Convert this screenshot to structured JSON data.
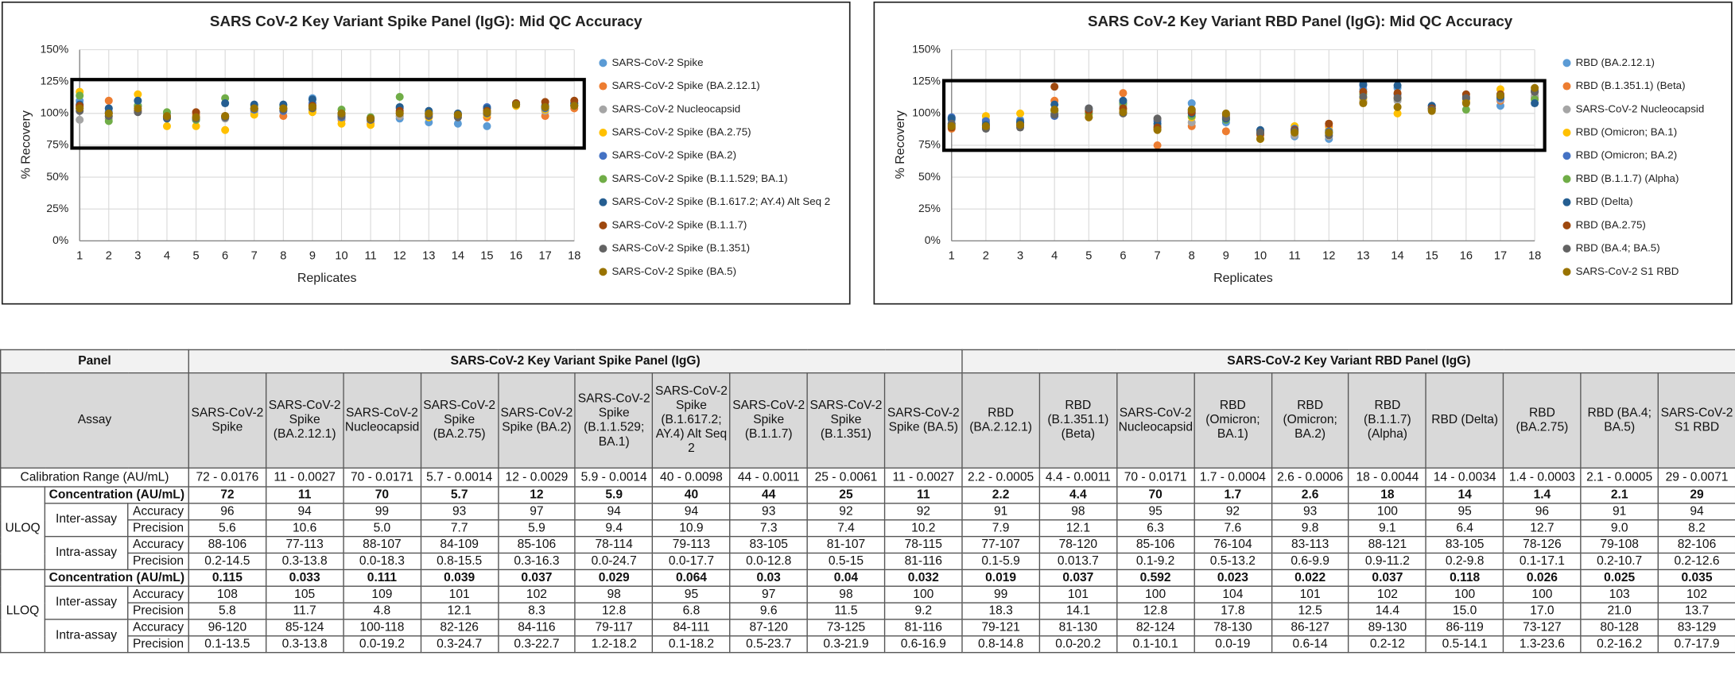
{
  "chart_data": [
    {
      "type": "scatter",
      "title": "SARS CoV-2 Key Variant Spike Panel (IgG): Mid QC Accuracy",
      "x_label": "Replicates",
      "y_label": "% Recovery",
      "x": [
        1,
        2,
        3,
        4,
        5,
        6,
        7,
        8,
        9,
        10,
        11,
        12,
        13,
        14,
        15,
        16,
        17,
        18
      ],
      "xlim": [
        1,
        18
      ],
      "xticks": [
        1,
        2,
        3,
        4,
        5,
        6,
        7,
        8,
        9,
        10,
        11,
        12,
        13,
        14,
        15,
        16,
        17,
        18
      ],
      "ylim": [
        0,
        150
      ],
      "yticks": [
        {
          "value": 0,
          "label": "0%"
        },
        {
          "value": 25,
          "label": "25%"
        },
        {
          "value": 50,
          "label": "50%"
        },
        {
          "value": 75,
          "label": "75%"
        },
        {
          "value": 100,
          "label": "100%"
        },
        {
          "value": 125,
          "label": "125%"
        },
        {
          "value": 150,
          "label": "150%"
        }
      ],
      "grid": true,
      "legend": "right",
      "series": [
        {
          "name": "SARS-CoV-2 Spike",
          "color": "#5b9bd5",
          "values": [
            110,
            104,
            106,
            100,
            96,
            98,
            103,
            104,
            112,
            100,
            96,
            96,
            93,
            92,
            90,
            107,
            104,
            106
          ]
        },
        {
          "name": "SARS-CoV-2 Spike (BA.2.12.1)",
          "color": "#ed7d31",
          "values": [
            105,
            110,
            106,
            97,
            99,
            98,
            102,
            98,
            104,
            95,
            92,
            98,
            97,
            97,
            97,
            106,
            98,
            104
          ]
        },
        {
          "name": "SARS-CoV-2 Nucleocapsid",
          "color": "#a5a5a5",
          "values": [
            95,
            96,
            103,
            97,
            95,
            96,
            101,
            102,
            103,
            96,
            94,
            98,
            99,
            98,
            100,
            106,
            102,
            106
          ]
        },
        {
          "name": "SARS-CoV-2 Spike (BA.2.75)",
          "color": "#ffc000",
          "values": [
            117,
            98,
            115,
            90,
            90,
            87,
            99,
            104,
            101,
            92,
            91,
            101,
            97,
            98,
            99,
            106,
            103,
            106
          ]
        },
        {
          "name": "SARS-CoV-2 Spike (BA.2)",
          "color": "#4472c4",
          "values": [
            104,
            101,
            106,
            98,
            95,
            97,
            103,
            102,
            108,
            97,
            95,
            104,
            101,
            99,
            105,
            107,
            104,
            107
          ]
        },
        {
          "name": "SARS-CoV-2 Spike (B.1.1.529; BA.1)",
          "color": "#70ad47",
          "values": [
            114,
            94,
            106,
            101,
            95,
            112,
            106,
            106,
            106,
            103,
            97,
            113,
            100,
            99,
            102,
            107,
            105,
            108
          ]
        },
        {
          "name": "SARS-CoV-2 Spike (B.1.617.2; AY.4) Alt Seq 2",
          "color": "#255e91",
          "values": [
            107,
            104,
            110,
            96,
            97,
            108,
            107,
            107,
            111,
            99,
            96,
            105,
            102,
            100,
            104,
            108,
            106,
            108
          ]
        },
        {
          "name": "SARS-CoV-2 Spike (B.1.1.7)",
          "color": "#9e480e",
          "values": [
            106,
            100,
            102,
            97,
            101,
            98,
            104,
            104,
            106,
            100,
            96,
            102,
            99,
            99,
            102,
            108,
            109,
            110
          ]
        },
        {
          "name": "SARS-CoV-2 Spike (B.1.351)",
          "color": "#636363",
          "values": [
            102,
            98,
            101,
            97,
            96,
            97,
            104,
            103,
            104,
            98,
            95,
            100,
            98,
            97,
            100,
            107,
            105,
            106
          ]
        },
        {
          "name": "SARS-CoV-2 Spike (BA.5)",
          "color": "#997300",
          "values": [
            104,
            100,
            104,
            98,
            97,
            98,
            104,
            104,
            105,
            100,
            96,
            100,
            100,
            99,
            101,
            107,
            105,
            106
          ]
        }
      ]
    },
    {
      "type": "scatter",
      "title": "SARS CoV-2 Key Variant RBD Panel (IgG): Mid QC Accuracy",
      "x_label": "Replicates",
      "y_label": "% Recovery",
      "x": [
        1,
        2,
        3,
        4,
        5,
        6,
        7,
        8,
        9,
        10,
        11,
        12,
        13,
        14,
        15,
        16,
        17,
        18
      ],
      "xlim": [
        1,
        18
      ],
      "xticks": [
        1,
        2,
        3,
        4,
        5,
        6,
        7,
        8,
        9,
        10,
        11,
        12,
        13,
        14,
        15,
        16,
        17,
        18
      ],
      "ylim": [
        0,
        150
      ],
      "yticks": [
        {
          "value": 0,
          "label": "0%"
        },
        {
          "value": 25,
          "label": "25%"
        },
        {
          "value": 50,
          "label": "50%"
        },
        {
          "value": 75,
          "label": "75%"
        },
        {
          "value": 100,
          "label": "100%"
        },
        {
          "value": 125,
          "label": "125%"
        },
        {
          "value": 150,
          "label": "150%"
        }
      ],
      "grid": true,
      "legend": "right",
      "series": [
        {
          "name": "RBD (BA.2.12.1)",
          "color": "#5b9bd5",
          "values": [
            95,
            92,
            95,
            103,
            100,
            103,
            88,
            108,
            93,
            86,
            82,
            80,
            119,
            120,
            103,
            108,
            106,
            113
          ]
        },
        {
          "name": "RBD (B.1.351.1) (Beta)",
          "color": "#ed7d31",
          "values": [
            88,
            93,
            93,
            110,
            97,
            116,
            75,
            90,
            86,
            83,
            85,
            90,
            109,
            113,
            104,
            109,
            110,
            112
          ]
        },
        {
          "name": "SARS-CoV-2 Nucleocapsid",
          "color": "#a5a5a5",
          "values": [
            92,
            95,
            90,
            100,
            101,
            106,
            95,
            93,
            96,
            85,
            83,
            82,
            110,
            110,
            104,
            111,
            111,
            114
          ]
        },
        {
          "name": "RBD (Omicron; BA.1)",
          "color": "#ffc000",
          "values": [
            90,
            98,
            100,
            102,
            99,
            103,
            88,
            97,
            98,
            80,
            90,
            87,
            112,
            100,
            105,
            110,
            119,
            118
          ]
        },
        {
          "name": "RBD (Omicron; BA.2)",
          "color": "#4472c4",
          "values": [
            97,
            94,
            94,
            98,
            104,
            108,
            94,
            102,
            95,
            86,
            88,
            86,
            122,
            115,
            106,
            112,
            112,
            118
          ]
        },
        {
          "name": "RBD (B.1.1.7) (Alpha)",
          "color": "#70ad47",
          "values": [
            91,
            91,
            93,
            102,
            100,
            108,
            90,
            98,
            95,
            85,
            86,
            84,
            115,
            112,
            104,
            103,
            113,
            111
          ]
        },
        {
          "name": "RBD (Delta)",
          "color": "#255e91",
          "values": [
            96,
            91,
            93,
            107,
            103,
            110,
            92,
            100,
            96,
            87,
            87,
            85,
            123,
            122,
            106,
            113,
            113,
            108
          ]
        },
        {
          "name": "RBD (BA.2.75)",
          "color": "#9e480e",
          "values": [
            89,
            89,
            91,
            121,
            102,
            104,
            89,
            101,
            99,
            84,
            87,
            92,
            117,
            116,
            104,
            115,
            115,
            117
          ]
        },
        {
          "name": "RBD (BA.4; BA.5)",
          "color": "#636363",
          "values": [
            92,
            88,
            89,
            99,
            104,
            100,
            96,
            103,
            97,
            85,
            86,
            83,
            113,
            112,
            103,
            112,
            114,
            117
          ]
        },
        {
          "name": "SARS-CoV-2 S1 RBD",
          "color": "#997300",
          "values": [
            90,
            90,
            91,
            103,
            97,
            101,
            87,
            103,
            100,
            80,
            85,
            85,
            108,
            105,
            102,
            108,
            114,
            120
          ]
        }
      ]
    }
  ],
  "table": {
    "panel_label": "Panel",
    "panels": [
      "SARS-CoV-2 Key Variant Spike Panel (IgG)",
      "SARS-CoV-2 Key Variant RBD Panel (IgG)"
    ],
    "assay_label": "Assay",
    "assays": [
      "SARS-CoV-2 Spike",
      "SARS-CoV-2 Spike (BA.2.12.1)",
      "SARS-CoV-2 Nucleocapsid",
      "SARS-CoV-2 Spike (BA.2.75)",
      "SARS-CoV-2 Spike (BA.2)",
      "SARS-CoV-2 Spike (B.1.1.529; BA.1)",
      "SARS-CoV-2 Spike (B.1.617.2; AY.4) Alt Seq 2",
      "SARS-CoV-2 Spike (B.1.1.7)",
      "SARS-CoV-2 Spike (B.1.351)",
      "SARS-CoV-2 Spike (BA.5)",
      "RBD (BA.2.12.1)",
      "RBD (B.1.351.1) (Beta)",
      "SARS-CoV-2 Nucleocapsid",
      "RBD (Omicron; BA.1)",
      "RBD (Omicron; BA.2)",
      "RBD (B.1.1.7) (Alpha)",
      "RBD (Delta)",
      "RBD (BA.2.75)",
      "RBD (BA.4; BA.5)",
      "SARS-CoV-2 S1 RBD"
    ],
    "calibration_label": "Calibration Range (AU/mL)",
    "calibration": [
      "72 - 0.0176",
      "11 - 0.0027",
      "70 - 0.0171",
      "5.7 - 0.0014",
      "12 - 0.0029",
      "5.9 - 0.0014",
      "40 - 0.0098",
      "44 - 0.0011",
      "25 - 0.0061",
      "11 - 0.0027",
      "2.2 - 0.0005",
      "4.4 - 0.0011",
      "70 - 0.0171",
      "1.7 - 0.0004",
      "2.6 - 0.0006",
      "18 - 0.0044",
      "14 - 0.0034",
      "1.4 - 0.0003",
      "2.1 - 0.0005",
      "29 - 0.0071"
    ],
    "sections": [
      {
        "label": "ULOQ",
        "rows": [
          {
            "label": "Concentration (AU/mL)",
            "values": [
              "72",
              "11",
              "70",
              "5.7",
              "12",
              "5.9",
              "40",
              "44",
              "25",
              "11",
              "2.2",
              "4.4",
              "70",
              "1.7",
              "2.6",
              "18",
              "14",
              "1.4",
              "2.1",
              "29"
            ]
          },
          {
            "group": "Inter-assay",
            "metric": "Accuracy",
            "values": [
              "96",
              "94",
              "99",
              "93",
              "97",
              "94",
              "94",
              "93",
              "92",
              "92",
              "91",
              "98",
              "95",
              "92",
              "93",
              "100",
              "95",
              "96",
              "91",
              "94"
            ]
          },
          {
            "metric": "Precision",
            "values": [
              "5.6",
              "10.6",
              "5.0",
              "7.7",
              "5.9",
              "9.4",
              "10.9",
              "7.3",
              "7.4",
              "10.2",
              "7.9",
              "12.1",
              "6.3",
              "7.6",
              "9.8",
              "9.1",
              "6.4",
              "12.7",
              "9.0",
              "8.2"
            ]
          },
          {
            "group": "Intra-assay",
            "metric": "Accuracy",
            "values": [
              "88-106",
              "77-113",
              "88-107",
              "84-109",
              "85-106",
              "78-114",
              "79-113",
              "83-105",
              "81-107",
              "78-115",
              "77-107",
              "78-120",
              "85-106",
              "76-104",
              "83-113",
              "88-121",
              "83-105",
              "78-126",
              "79-108",
              "82-106"
            ]
          },
          {
            "metric": "Precision",
            "values": [
              "0.2-14.5",
              "0.3-13.8",
              "0.0-18.3",
              "0.8-15.5",
              "0.3-16.3",
              "0.0-24.7",
              "0.0-17.7",
              "0.0-12.8",
              "0.5-15",
              "81-116",
              "0.1-5.9",
              "0.013.7",
              "0.1-9.2",
              "0.5-13.2",
              "0.6-9.9",
              "0.9-11.2",
              "0.2-9.8",
              "0.1-17.1",
              "0.2-10.7",
              "0.2-12.6"
            ]
          }
        ]
      },
      {
        "label": "LLOQ",
        "rows": [
          {
            "label": "Concentration (AU/mL)",
            "values": [
              "0.115",
              "0.033",
              "0.111",
              "0.039",
              "0.037",
              "0.029",
              "0.064",
              "0.03",
              "0.04",
              "0.032",
              "0.019",
              "0.037",
              "0.592",
              "0.023",
              "0.022",
              "0.037",
              "0.118",
              "0.026",
              "0.025",
              "0.035"
            ]
          },
          {
            "group": "Inter-assay",
            "metric": "Accuracy",
            "values": [
              "108",
              "105",
              "109",
              "101",
              "102",
              "98",
              "95",
              "97",
              "98",
              "100",
              "99",
              "101",
              "100",
              "104",
              "101",
              "102",
              "100",
              "100",
              "103",
              "102"
            ]
          },
          {
            "metric": "Precision",
            "values": [
              "5.8",
              "11.7",
              "4.8",
              "12.1",
              "8.3",
              "12.8",
              "6.8",
              "9.6",
              "11.5",
              "9.2",
              "18.3",
              "14.1",
              "12.8",
              "17.8",
              "12.5",
              "14.4",
              "15.0",
              "17.0",
              "21.0",
              "13.7"
            ]
          },
          {
            "group": "Intra-assay",
            "metric": "Accuracy",
            "values": [
              "96-120",
              "85-124",
              "100-118",
              "82-126",
              "84-116",
              "79-117",
              "84-111",
              "87-120",
              "73-125",
              "81-116",
              "79-121",
              "81-130",
              "82-124",
              "78-130",
              "86-127",
              "89-130",
              "86-119",
              "73-127",
              "80-128",
              "83-129"
            ]
          },
          {
            "metric": "Precision",
            "values": [
              "0.1-13.5",
              "0.3-13.8",
              "0.0-19.2",
              "0.3-24.7",
              "0.3-22.7",
              "1.2-18.2",
              "0.1-18.2",
              "0.5-23.7",
              "0.3-21.9",
              "0.6-16.9",
              "0.8-14.8",
              "0.0-20.2",
              "0.1-10.1",
              "0.0-19",
              "0.6-14",
              "0.2-12",
              "0.5-14.1",
              "1.3-23.6",
              "0.2-16.2",
              "0.7-17.9"
            ]
          }
        ]
      }
    ]
  }
}
